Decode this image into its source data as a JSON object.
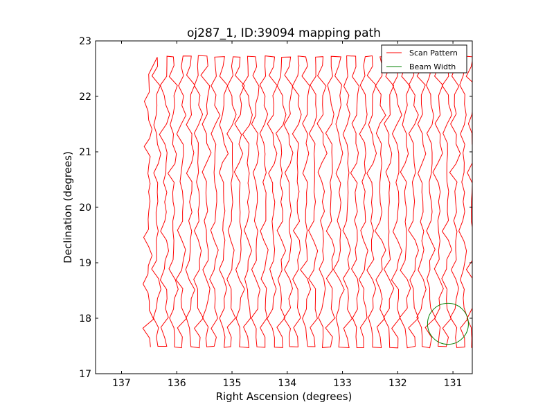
{
  "chart_data": {
    "type": "line",
    "title": "oj287_1, ID:39094 mapping path",
    "xlabel": "Right Ascension (degrees)",
    "ylabel": "Declination (degrees)",
    "xlim": [
      137.47,
      130.65
    ],
    "ylim": [
      17,
      23
    ],
    "x_inverted": true,
    "xticks": [
      137,
      136,
      135,
      134,
      133,
      132,
      131
    ],
    "yticks": [
      17,
      18,
      19,
      20,
      21,
      22,
      23
    ],
    "grid": false,
    "legend_position": "top-right",
    "legend": [
      "Scan Pattern",
      "Beam Width"
    ],
    "colors": {
      "scan": "#ff0000",
      "beam": "#008000"
    },
    "series": [
      {
        "name": "Scan Pattern",
        "scan_columns": {
          "ra_start": 136.5,
          "ra_step": -0.15,
          "count": 40,
          "dec_bottom": 17.48,
          "dec_top": 22.72,
          "first_column_dec_top": 22.4
        }
      },
      {
        "name": "Beam Width",
        "circle": {
          "ra_center": 131.09,
          "dec_center": 17.9,
          "radius_deg": 0.37
        }
      }
    ]
  }
}
